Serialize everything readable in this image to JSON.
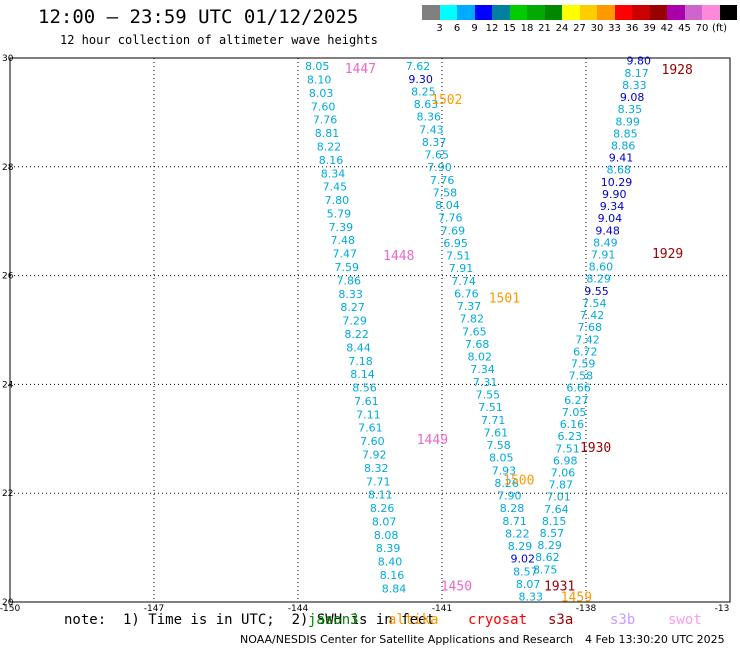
{
  "header": {
    "title": "12:00 – 23:59 UTC 01/12/2025",
    "subtitle": "12 hour collection of altimeter wave heights"
  },
  "colorbar": {
    "colors": [
      "#808080",
      "#00ffff",
      "#00aaff",
      "#0000ff",
      "#0080a0",
      "#00cc00",
      "#00aa00",
      "#008800",
      "#ffff00",
      "#ffcc00",
      "#ff9900",
      "#ff0000",
      "#cc0000",
      "#990000",
      "#aa00aa",
      "#cc66cc",
      "#ff88dd",
      "#000000"
    ],
    "labels": [
      "3",
      "6",
      "9",
      "12",
      "15",
      "18",
      "21",
      "24",
      "27",
      "30",
      "33",
      "36",
      "39",
      "42",
      "45",
      "70",
      "(ft)"
    ]
  },
  "axes": {
    "x_ticks": [
      "-150",
      "-147",
      "-144",
      "-141",
      "-138",
      "-13"
    ],
    "y_ticks": [
      "30",
      "28",
      "26",
      "24",
      "22",
      "20"
    ]
  },
  "tracks": [
    {
      "lon_start": -143.6,
      "lon_end": -142.0,
      "lat_start": 29.85,
      "lat_end": 20.25,
      "values": [
        "8.05",
        "8.10",
        "8.03",
        "7.60",
        "7.76",
        "8.81",
        "8.22",
        "8.16",
        "8.34",
        "7.45",
        "7.80",
        "5.79",
        "7.39",
        "7.48",
        "7.47",
        "7.59",
        "7.86",
        "8.33",
        "8.27",
        "7.29",
        "8.22",
        "8.44",
        "7.18",
        "8.14",
        "8.56",
        "7.61",
        "7.11",
        "7.61",
        "7.60",
        "7.92",
        "8.32",
        "7.71",
        "8.11",
        "8.26",
        "8.07",
        "8.08",
        "8.39",
        "8.40",
        "8.16",
        "8.84"
      ]
    },
    {
      "lon_start": -141.5,
      "lon_end": -139.15,
      "lat_start": 29.85,
      "lat_end": 20.1,
      "values": [
        "7.62",
        "9.30",
        "8.25",
        "8.63",
        "8.36",
        "7.43",
        "8.37",
        "7.65",
        "7.90",
        "7.76",
        "7.58",
        "8.04",
        "7.76",
        "7.69",
        "6.95",
        "7.51",
        "7.91",
        "7.74",
        "6.76",
        "7.37",
        "7.82",
        "7.65",
        "7.68",
        "8.02",
        "7.34",
        "7.31",
        "7.55",
        "7.51",
        "7.71",
        "7.61",
        "7.58",
        "8.05",
        "7.93",
        "8.26",
        "7.90",
        "8.28",
        "8.71",
        "8.22",
        "8.29",
        "9.02",
        "8.57",
        "8.07",
        "8.33"
      ]
    },
    {
      "lon_start": -136.9,
      "lon_end": -138.85,
      "lat_start": 29.95,
      "lat_end": 20.6,
      "values": [
        "9.80",
        "8.17",
        "8.33",
        "9.08",
        "8.35",
        "8.99",
        "8.85",
        "8.86",
        "9.41",
        "8.68",
        "10.29",
        "9.90",
        "9.34",
        "9.04",
        "9.48",
        "8.49",
        "7.91",
        "8.60",
        "8.29",
        "9.55",
        "7.54",
        "7.42",
        "7.68",
        "7.42",
        "6.72",
        "7.59",
        "7.58",
        "6.66",
        "6.27",
        "7.05",
        "6.16",
        "6.23",
        "7.51",
        "6.98",
        "7.06",
        "7.87",
        "7.01",
        "7.64",
        "8.15",
        "8.57",
        "8.29",
        "8.62",
        "8.75"
      ]
    }
  ],
  "pass_labels": [
    {
      "text": "1447",
      "color": "#ee66cc",
      "lon": -142.7,
      "lat": 29.82
    },
    {
      "text": "1502",
      "color": "#ff9900",
      "lon": -140.9,
      "lat": 29.25
    },
    {
      "text": "1448",
      "color": "#ee66cc",
      "lon": -141.9,
      "lat": 26.38
    },
    {
      "text": "1501",
      "color": "#ff9900",
      "lon": -139.7,
      "lat": 25.6
    },
    {
      "text": "1449",
      "color": "#ee66cc",
      "lon": -141.2,
      "lat": 23.0
    },
    {
      "text": "1500",
      "color": "#ff9900",
      "lon": -139.4,
      "lat": 22.25
    },
    {
      "text": "1450",
      "color": "#ee66cc",
      "lon": -140.7,
      "lat": 20.3
    },
    {
      "text": "1931",
      "color": "#990000",
      "lon": -138.55,
      "lat": 20.3
    },
    {
      "text": "1459",
      "color": "#ff9900",
      "lon": -138.2,
      "lat": 20.1
    },
    {
      "text": "1928",
      "color": "#990000",
      "lon": -136.1,
      "lat": 29.8
    },
    {
      "text": "1929",
      "color": "#990000",
      "lon": -136.3,
      "lat": 26.42
    },
    {
      "text": "1930",
      "color": "#990000",
      "lon": -137.8,
      "lat": 22.85
    }
  ],
  "footer": {
    "note": "note:  1) Time is in UTC;  2) SWH is in feet",
    "missions": [
      {
        "name": "jason3",
        "color": "#008800"
      },
      {
        "name": "altika",
        "color": "#ff9900"
      },
      {
        "name": "cryosat",
        "color": "#ff0000"
      },
      {
        "name": "s3a",
        "color": "#990000"
      },
      {
        "name": "s3b",
        "color": "#cc99ff"
      },
      {
        "name": "swot",
        "color": "#ff99ee"
      }
    ],
    "credit": "NOAA/NESDIS Center for Satellite Applications and Research",
    "date": "4 Feb 13:30:20 UTC 2025"
  },
  "map": {
    "lon_min": -150,
    "lon_max": -135,
    "lat_min": 20,
    "lat_max": 30
  }
}
